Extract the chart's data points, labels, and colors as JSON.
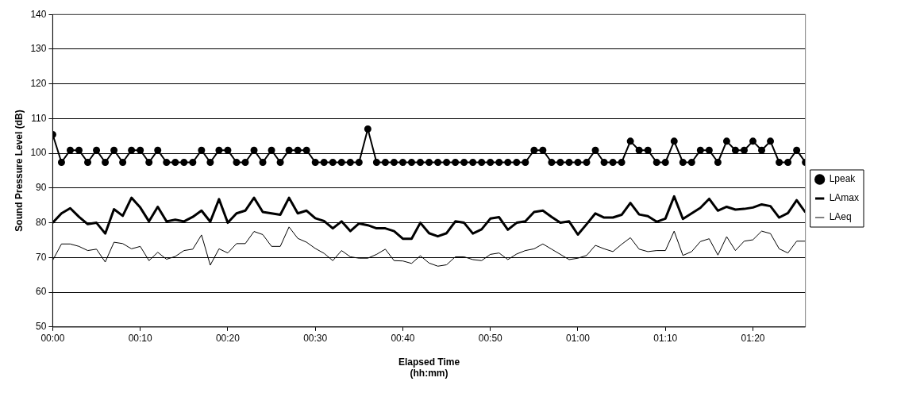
{
  "chart_data": {
    "type": "line",
    "xlabel": "Elapsed Time\n(hh:mm)",
    "ylabel": "Sound Pressure Level (dB)",
    "x": [
      0,
      1,
      2,
      3,
      4,
      5,
      6,
      7,
      8,
      9,
      10,
      11,
      12,
      13,
      14,
      15,
      16,
      17,
      18,
      19,
      20,
      21,
      22,
      23,
      24,
      25,
      26,
      27,
      28,
      29,
      30,
      31,
      32,
      33,
      34,
      35,
      36,
      37,
      38,
      39,
      40,
      41,
      42,
      43,
      44,
      45,
      46,
      47,
      48,
      49,
      50,
      51,
      52,
      53,
      54,
      55,
      56,
      57,
      58,
      59,
      60,
      61,
      62,
      63,
      64,
      65,
      66,
      67,
      68,
      69,
      70,
      71,
      72,
      73,
      74,
      75,
      76,
      77,
      78,
      79,
      80,
      81,
      82,
      83,
      84,
      85,
      86
    ],
    "xlim": [
      0,
      86
    ],
    "xticks": [
      {
        "value": 0,
        "label": "00:00"
      },
      {
        "value": 10,
        "label": "00:10"
      },
      {
        "value": 20,
        "label": "00:20"
      },
      {
        "value": 30,
        "label": "00:30"
      },
      {
        "value": 40,
        "label": "00:40"
      },
      {
        "value": 50,
        "label": "00:50"
      },
      {
        "value": 60,
        "label": "01:00"
      },
      {
        "value": 70,
        "label": "01:10"
      },
      {
        "value": 80,
        "label": "01:20"
      }
    ],
    "ylim": [
      50,
      140
    ],
    "yticks": [
      50,
      60,
      70,
      80,
      90,
      100,
      110,
      120,
      130,
      140
    ],
    "grid": "y",
    "legend": "right",
    "series": [
      {
        "name": "Lpeak",
        "color": "#000000",
        "marker": "circle",
        "line_style": "solid",
        "values": [
          105.4,
          97.4,
          100.9,
          100.9,
          97.4,
          100.9,
          97.4,
          100.9,
          97.4,
          100.9,
          100.9,
          97.4,
          100.9,
          97.4,
          97.4,
          97.4,
          97.4,
          100.9,
          97.4,
          100.9,
          100.9,
          97.4,
          97.4,
          100.9,
          97.4,
          100.9,
          97.4,
          100.9,
          100.9,
          100.9,
          97.4,
          97.4,
          97.4,
          97.4,
          97.4,
          97.4,
          107.0,
          97.4,
          97.4,
          97.4,
          97.4,
          97.4,
          97.4,
          97.4,
          97.4,
          97.4,
          97.4,
          97.4,
          97.4,
          97.4,
          97.4,
          97.4,
          97.4,
          97.4,
          97.4,
          100.9,
          100.9,
          97.4,
          97.4,
          97.4,
          97.4,
          97.4,
          100.9,
          97.4,
          97.4,
          97.4,
          103.5,
          100.9,
          100.9,
          97.4,
          97.4,
          103.5,
          97.4,
          97.4,
          100.9,
          100.9,
          97.4,
          103.5,
          100.9,
          100.9,
          103.5,
          100.9,
          103.5,
          97.4,
          97.4,
          100.9,
          97.4
        ]
      },
      {
        "name": "LAmax",
        "color": "#000000",
        "marker": "none",
        "line_style": "solid",
        "values": [
          80.0,
          82.7,
          84.2,
          81.7,
          79.6,
          80.0,
          76.9,
          83.9,
          82.0,
          87.2,
          84.4,
          80.4,
          84.6,
          80.4,
          80.9,
          80.4,
          81.7,
          83.5,
          80.3,
          86.8,
          80.0,
          82.7,
          83.5,
          87.2,
          83.1,
          82.7,
          82.3,
          87.2,
          82.7,
          83.5,
          81.3,
          80.5,
          78.4,
          80.4,
          77.6,
          79.8,
          79.3,
          78.4,
          78.4,
          77.6,
          75.4,
          75.4,
          80.0,
          77.0,
          76.1,
          77.0,
          80.4,
          80.0,
          76.9,
          78.1,
          81.2,
          81.6,
          78.0,
          80.0,
          80.4,
          83.1,
          83.5,
          81.7,
          80.0,
          80.4,
          76.6,
          79.6,
          82.7,
          81.5,
          81.5,
          82.3,
          85.7,
          82.4,
          81.9,
          80.3,
          81.2,
          87.6,
          81.1,
          82.7,
          84.3,
          86.9,
          83.5,
          84.6,
          83.8,
          84.0,
          84.4,
          85.3,
          84.8,
          81.5,
          82.8,
          86.5,
          83.0
        ]
      },
      {
        "name": "LAeq",
        "color": "#000000",
        "marker": "none",
        "line_style": "solid",
        "values": [
          69.2,
          73.9,
          73.9,
          73.2,
          72.0,
          72.4,
          68.7,
          74.4,
          74.0,
          72.5,
          73.2,
          69.1,
          71.5,
          69.5,
          70.3,
          72.0,
          72.4,
          76.5,
          67.8,
          72.5,
          71.3,
          74.0,
          74.0,
          77.5,
          76.6,
          73.2,
          73.2,
          78.8,
          75.5,
          74.4,
          72.6,
          71.2,
          69.1,
          72.0,
          70.2,
          69.8,
          69.8,
          70.9,
          72.4,
          69.1,
          69.0,
          68.3,
          70.5,
          68.4,
          67.5,
          67.9,
          70.2,
          70.2,
          69.4,
          69.1,
          70.9,
          71.3,
          69.4,
          71.0,
          72.0,
          72.5,
          73.9,
          72.4,
          70.9,
          69.4,
          69.8,
          70.6,
          73.5,
          72.5,
          71.7,
          73.8,
          75.7,
          72.4,
          71.7,
          72.0,
          72.0,
          77.6,
          70.6,
          71.7,
          74.6,
          75.4,
          70.7,
          76.0,
          72.0,
          74.7,
          75.1,
          77.6,
          76.9,
          72.5,
          71.3,
          74.7,
          74.7
        ]
      }
    ]
  }
}
